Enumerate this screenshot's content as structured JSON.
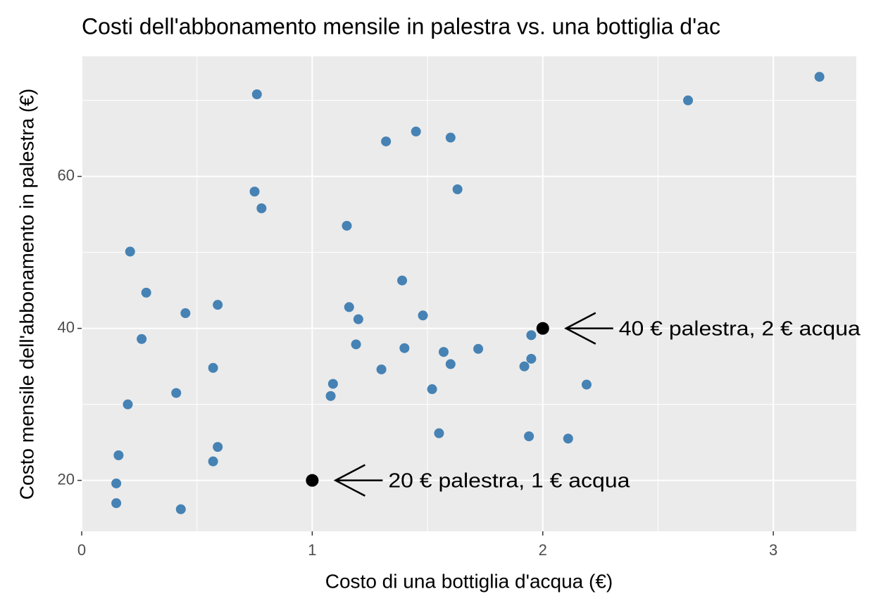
{
  "chart_data": {
    "type": "scatter",
    "title": "Costi dell'abbonamento mensile in palestra vs. una bottiglia d'ac",
    "x_label": "Costo di una bottiglia d'acqua (€)",
    "y_label": "Costo mensile dell'abbonamento in palestra (€)",
    "xlim": [
      0,
      3.36
    ],
    "ylim": [
      13.3,
      75.8
    ],
    "xticks": [
      0,
      1,
      2,
      3
    ],
    "yticks": [
      20,
      40,
      60
    ],
    "minor_xticks": [
      0.5,
      1.5,
      2.5
    ],
    "minor_yticks": [
      30,
      50,
      70
    ],
    "grid": true,
    "series": [
      {
        "color": "#4682b4",
        "x": [
          0.76,
          2.63,
          3.2,
          1.45,
          1.6,
          1.32,
          1.63,
          0.75,
          0.78,
          1.15,
          0.21,
          1.39,
          0.28,
          0.59,
          0.45,
          1.16,
          1.48,
          1.2,
          1.95,
          0.26,
          1.19,
          1.4,
          1.72,
          1.57,
          1.95,
          1.6,
          1.92,
          0.57,
          1.3,
          2.19,
          1.09,
          1.52,
          1.08,
          0.41,
          0.2,
          1.55,
          1.94,
          2.11,
          0.59,
          0.16,
          0.57,
          0.15,
          0.15,
          0.43
        ],
        "values": [
          70.8,
          70.0,
          73.1,
          65.9,
          65.1,
          64.6,
          58.3,
          58.0,
          55.8,
          53.5,
          50.1,
          46.3,
          44.7,
          43.1,
          42.0,
          42.8,
          41.7,
          41.2,
          39.1,
          38.6,
          37.9,
          37.4,
          37.3,
          36.9,
          36.0,
          35.3,
          35.0,
          34.8,
          34.6,
          32.6,
          32.7,
          32.0,
          31.1,
          31.5,
          30.0,
          26.2,
          25.8,
          25.5,
          24.4,
          23.3,
          22.5,
          19.6,
          17.0,
          16.2
        ]
      }
    ],
    "highlights": [
      {
        "x": 1,
        "y": 20,
        "label": "20 € palestra, 1 € acqua",
        "color": "#000000"
      },
      {
        "x": 2,
        "y": 40,
        "label": "40 € palestra, 2 € acqua",
        "color": "#000000"
      }
    ]
  }
}
